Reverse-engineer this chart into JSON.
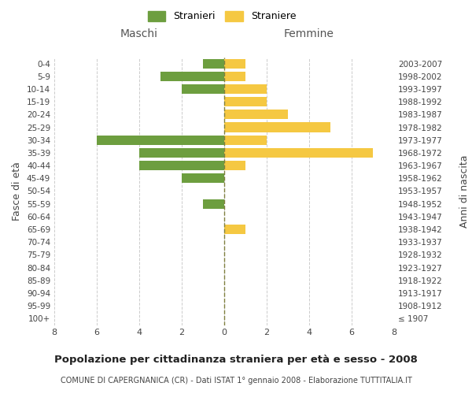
{
  "age_groups": [
    "100+",
    "95-99",
    "90-94",
    "85-89",
    "80-84",
    "75-79",
    "70-74",
    "65-69",
    "60-64",
    "55-59",
    "50-54",
    "45-49",
    "40-44",
    "35-39",
    "30-34",
    "25-29",
    "20-24",
    "15-19",
    "10-14",
    "5-9",
    "0-4"
  ],
  "birth_years": [
    "≤ 1907",
    "1908-1912",
    "1913-1917",
    "1918-1922",
    "1923-1927",
    "1928-1932",
    "1933-1937",
    "1938-1942",
    "1943-1947",
    "1948-1952",
    "1953-1957",
    "1958-1962",
    "1963-1967",
    "1968-1972",
    "1973-1977",
    "1978-1982",
    "1983-1987",
    "1988-1992",
    "1993-1997",
    "1998-2002",
    "2003-2007"
  ],
  "males": [
    0,
    0,
    0,
    0,
    0,
    0,
    0,
    0,
    0,
    1,
    0,
    2,
    4,
    4,
    6,
    0,
    0,
    0,
    2,
    3,
    1
  ],
  "females": [
    0,
    0,
    0,
    0,
    0,
    0,
    0,
    1,
    0,
    0,
    0,
    0,
    1,
    7,
    2,
    5,
    3,
    2,
    2,
    1,
    1
  ],
  "male_color": "#6d9e3f",
  "female_color": "#f5c842",
  "male_label": "Stranieri",
  "female_label": "Straniere",
  "title": "Popolazione per cittadinanza straniera per età e sesso - 2008",
  "subtitle": "COMUNE DI CAPERGNANICA (CR) - Dati ISTAT 1° gennaio 2008 - Elaborazione TUTTITALIA.IT",
  "xlabel_left": "Maschi",
  "xlabel_right": "Femmine",
  "ylabel_left": "Fasce di età",
  "ylabel_right": "Anni di nascita",
  "xlim": 8,
  "background_color": "#ffffff",
  "grid_color": "#cccccc",
  "center_line_color": "#808040"
}
